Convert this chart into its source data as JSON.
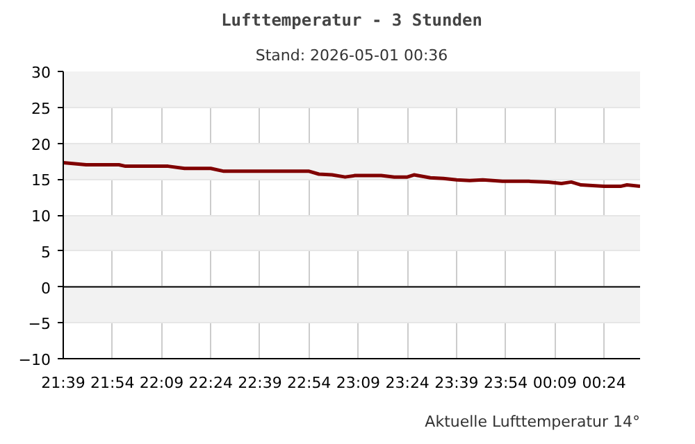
{
  "chart_data": {
    "type": "line",
    "title": "Lufttemperatur - 3 Stunden",
    "subtitle": "Stand: 2026-05-01 00:36",
    "x": [
      "2026-04-30T21:39",
      "2026-04-30T21:46",
      "2026-04-30T21:56",
      "2026-04-30T21:58",
      "2026-04-30T22:11",
      "2026-04-30T22:16",
      "2026-04-30T22:24",
      "2026-04-30T22:28",
      "2026-04-30T22:54",
      "2026-04-30T22:57",
      "2026-04-30T23:01",
      "2026-04-30T23:05",
      "2026-04-30T23:08",
      "2026-04-30T23:16",
      "2026-04-30T23:20",
      "2026-04-30T23:24",
      "2026-04-30T23:26",
      "2026-04-30T23:31",
      "2026-04-30T23:35",
      "2026-04-30T23:39",
      "2026-04-30T23:43",
      "2026-04-30T23:47",
      "2026-04-30T23:53",
      "2026-05-01T00:01",
      "2026-05-01T00:07",
      "2026-05-01T00:11",
      "2026-05-01T00:14",
      "2026-05-01T00:17",
      "2026-05-01T00:24",
      "2026-05-01T00:29",
      "2026-05-01T00:31",
      "2026-05-01T00:35"
    ],
    "series": [
      {
        "color": "#800000",
        "values": [
          17.3,
          17.0,
          17.0,
          16.8,
          16.8,
          16.5,
          16.5,
          16.1,
          16.1,
          15.7,
          15.6,
          15.3,
          15.5,
          15.5,
          15.3,
          15.3,
          15.6,
          15.2,
          15.1,
          14.9,
          14.8,
          14.9,
          14.7,
          14.7,
          14.6,
          14.4,
          14.6,
          14.2,
          14.0,
          14.0,
          14.2,
          14.0
        ]
      }
    ],
    "xlim": [
      "2026-04-30T21:39",
      "2026-05-01T00:35"
    ],
    "ylim": [
      -10,
      30
    ],
    "xticks": [
      {
        "value": "2026-04-30T21:39",
        "label": "21:39"
      },
      {
        "value": "2026-04-30T21:54",
        "label": "21:54"
      },
      {
        "value": "2026-04-30T22:09",
        "label": "22:09"
      },
      {
        "value": "2026-04-30T22:24",
        "label": "22:24"
      },
      {
        "value": "2026-04-30T22:39",
        "label": "22:39"
      },
      {
        "value": "2026-04-30T22:54",
        "label": "22:54"
      },
      {
        "value": "2026-04-30T23:09",
        "label": "23:09"
      },
      {
        "value": "2026-04-30T23:24",
        "label": "23:24"
      },
      {
        "value": "2026-04-30T23:39",
        "label": "23:39"
      },
      {
        "value": "2026-04-30T23:54",
        "label": "23:54"
      },
      {
        "value": "2026-05-01T00:09",
        "label": "00:09"
      },
      {
        "value": "2026-05-01T00:24",
        "label": "00:24"
      }
    ],
    "yticks": [
      -10,
      -5,
      0,
      5,
      10,
      15,
      20,
      25,
      30
    ],
    "ref_lines": [
      {
        "axis": "y",
        "value": 0,
        "color": "#000000"
      }
    ],
    "grid": true,
    "marker": "none",
    "line_style": "solid",
    "annotations": [
      "Aktuelle Lufttemperatur 14°"
    ]
  }
}
